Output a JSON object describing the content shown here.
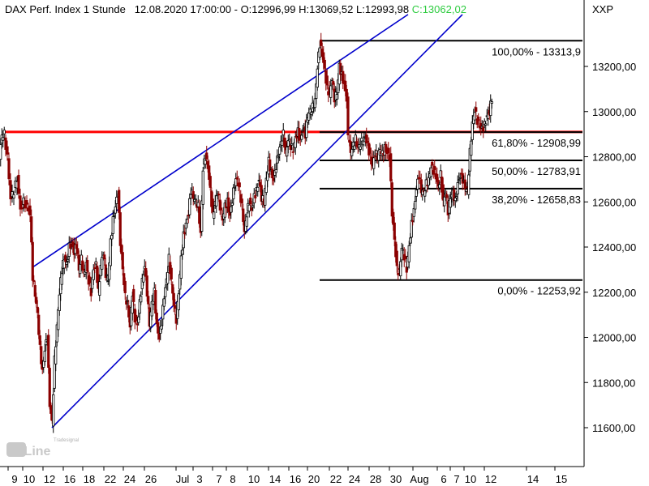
{
  "header": {
    "title": "DAX Perf. Index 1 Stunde",
    "datetime": "12.08.2020 17:00:00",
    "open": "O:12996,99",
    "high": "H:13069,52",
    "low": "L:12993,98",
    "close": "C:13062,02",
    "exchange": "XXP"
  },
  "colors": {
    "trendline": "#0000cc",
    "resistance": "#ff0000",
    "fib": "#000000",
    "up_candle": "#000000",
    "down_candle": "#8b0000",
    "close_text": "#2ecc40",
    "axis": "#000000"
  },
  "logo": {
    "brand": "Tradesignal",
    "text": "onLine"
  },
  "chart_data": {
    "type": "candlestick",
    "x_axis_labels": [
      "9",
      "10",
      "12",
      "16",
      "18",
      "22",
      "24",
      "26",
      "Jul",
      "3",
      "7",
      "8",
      "10",
      "14",
      "16",
      "20",
      "22",
      "24",
      "28",
      "30",
      "Aug",
      "6",
      "7",
      "10",
      "12",
      "14",
      "15"
    ],
    "y_axis_labels": [
      "13200,00",
      "13000,00",
      "12800,00",
      "12600,00",
      "12400,00",
      "12200,00",
      "12000,00",
      "11800,00",
      "11600,00"
    ],
    "y_ticks": [
      13200,
      13000,
      12800,
      12600,
      12400,
      12200,
      12000,
      11800,
      11600
    ],
    "ylim": [
      11480,
      13480
    ],
    "fibonacci": [
      {
        "label": "100,00% - 13313,9",
        "value": 13313.9
      },
      {
        "label": "61,80% - 12908,99",
        "value": 12908.99
      },
      {
        "label": "50,00% - 12783,91",
        "value": 12783.91
      },
      {
        "label": "38,20% - 12658,83",
        "value": 12658.83
      },
      {
        "label": "0,00% - 12253,92",
        "value": 12253.92
      }
    ],
    "resistance_level": 12910,
    "price_path": [
      [
        0,
        12800
      ],
      [
        3,
        12890
      ],
      [
        6,
        12900
      ],
      [
        10,
        12800
      ],
      [
        14,
        12620
      ],
      [
        18,
        12650
      ],
      [
        22,
        12700
      ],
      [
        26,
        12560
      ],
      [
        30,
        12600
      ],
      [
        34,
        12580
      ],
      [
        38,
        12550
      ],
      [
        41,
        12270
      ],
      [
        44,
        12190
      ],
      [
        47,
        12100
      ],
      [
        50,
        11950
      ],
      [
        53,
        11850
      ],
      [
        56,
        11950
      ],
      [
        59,
        12000
      ],
      [
        62,
        11700
      ],
      [
        65,
        11620
      ],
      [
        68,
        11900
      ],
      [
        71,
        12050
      ],
      [
        74,
        12200
      ],
      [
        77,
        12300
      ],
      [
        80,
        12350
      ],
      [
        83,
        12320
      ],
      [
        86,
        12400
      ],
      [
        89,
        12420
      ],
      [
        92,
        12380
      ],
      [
        95,
        12410
      ],
      [
        98,
        12300
      ],
      [
        101,
        12350
      ],
      [
        104,
        12280
      ],
      [
        107,
        12330
      ],
      [
        110,
        12250
      ],
      [
        113,
        12200
      ],
      [
        116,
        12300
      ],
      [
        119,
        12320
      ],
      [
        122,
        12200
      ],
      [
        125,
        12320
      ],
      [
        128,
        12380
      ],
      [
        131,
        12280
      ],
      [
        134,
        12250
      ],
      [
        137,
        12420
      ],
      [
        140,
        12520
      ],
      [
        143,
        12580
      ],
      [
        146,
        12650
      ],
      [
        149,
        12420
      ],
      [
        152,
        12300
      ],
      [
        155,
        12180
      ],
      [
        158,
        12150
      ],
      [
        161,
        12050
      ],
      [
        164,
        12200
      ],
      [
        167,
        12080
      ],
      [
        170,
        12050
      ],
      [
        173,
        12150
      ],
      [
        176,
        12250
      ],
      [
        179,
        12320
      ],
      [
        182,
        12200
      ],
      [
        185,
        12060
      ],
      [
        188,
        12150
      ],
      [
        191,
        12200
      ],
      [
        194,
        12050
      ],
      [
        197,
        12000
      ],
      [
        200,
        12070
      ],
      [
        203,
        12180
      ],
      [
        206,
        12250
      ],
      [
        209,
        12350
      ],
      [
        212,
        12250
      ],
      [
        215,
        12150
      ],
      [
        218,
        12080
      ],
      [
        221,
        12200
      ],
      [
        224,
        12350
      ],
      [
        227,
        12450
      ],
      [
        230,
        12500
      ],
      [
        233,
        12550
      ],
      [
        236,
        12650
      ],
      [
        239,
        12620
      ],
      [
        242,
        12600
      ],
      [
        245,
        12580
      ],
      [
        248,
        12460
      ],
      [
        251,
        12750
      ],
      [
        254,
        12800
      ],
      [
        257,
        12750
      ],
      [
        260,
        12650
      ],
      [
        263,
        12540
      ],
      [
        266,
        12600
      ],
      [
        269,
        12650
      ],
      [
        272,
        12580
      ],
      [
        275,
        12520
      ],
      [
        278,
        12580
      ],
      [
        281,
        12600
      ],
      [
        284,
        12540
      ],
      [
        287,
        12610
      ],
      [
        290,
        12680
      ],
      [
        293,
        12700
      ],
      [
        296,
        12650
      ],
      [
        299,
        12580
      ],
      [
        302,
        12470
      ],
      [
        305,
        12550
      ],
      [
        308,
        12600
      ],
      [
        311,
        12560
      ],
      [
        314,
        12620
      ],
      [
        317,
        12650
      ],
      [
        320,
        12700
      ],
      [
        323,
        12620
      ],
      [
        326,
        12600
      ],
      [
        329,
        12700
      ],
      [
        332,
        12780
      ],
      [
        335,
        12730
      ],
      [
        338,
        12700
      ],
      [
        341,
        12760
      ],
      [
        344,
        12810
      ],
      [
        347,
        12860
      ],
      [
        350,
        12900
      ],
      [
        353,
        12820
      ],
      [
        356,
        12880
      ],
      [
        359,
        12850
      ],
      [
        362,
        12830
      ],
      [
        365,
        12880
      ],
      [
        368,
        12910
      ],
      [
        371,
        12870
      ],
      [
        374,
        12930
      ],
      [
        377,
        12900
      ],
      [
        380,
        12980
      ],
      [
        383,
        13000
      ],
      [
        386,
        13020
      ],
      [
        389,
        13050
      ],
      [
        392,
        13200
      ],
      [
        395,
        13300
      ],
      [
        398,
        13250
      ],
      [
        401,
        13180
      ],
      [
        404,
        13100
      ],
      [
        407,
        13080
      ],
      [
        410,
        13150
      ],
      [
        413,
        13060
      ],
      [
        416,
        13080
      ],
      [
        419,
        13200
      ],
      [
        422,
        13160
      ],
      [
        425,
        13120
      ],
      [
        428,
        13060
      ],
      [
        430,
        12880
      ],
      [
        433,
        12820
      ],
      [
        436,
        12850
      ],
      [
        439,
        12880
      ],
      [
        442,
        12840
      ],
      [
        445,
        12860
      ],
      [
        448,
        12870
      ],
      [
        451,
        12880
      ],
      [
        454,
        12850
      ],
      [
        457,
        12800
      ],
      [
        460,
        12760
      ],
      [
        463,
        12820
      ],
      [
        466,
        12800
      ],
      [
        469,
        12830
      ],
      [
        472,
        12810
      ],
      [
        475,
        12840
      ],
      [
        478,
        12820
      ],
      [
        481,
        12800
      ],
      [
        484,
        12550
      ],
      [
        487,
        12430
      ],
      [
        490,
        12300
      ],
      [
        493,
        12290
      ],
      [
        496,
        12400
      ],
      [
        499,
        12360
      ],
      [
        502,
        12300
      ],
      [
        505,
        12400
      ],
      [
        508,
        12500
      ],
      [
        511,
        12560
      ],
      [
        514,
        12660
      ],
      [
        517,
        12720
      ],
      [
        520,
        12650
      ],
      [
        523,
        12640
      ],
      [
        526,
        12680
      ],
      [
        529,
        12700
      ],
      [
        532,
        12760
      ],
      [
        535,
        12740
      ],
      [
        538,
        12710
      ],
      [
        541,
        12660
      ],
      [
        544,
        12720
      ],
      [
        547,
        12600
      ],
      [
        550,
        12650
      ],
      [
        553,
        12560
      ],
      [
        556,
        12620
      ],
      [
        559,
        12640
      ],
      [
        562,
        12600
      ],
      [
        565,
        12680
      ],
      [
        568,
        12720
      ],
      [
        571,
        12700
      ],
      [
        574,
        12660
      ],
      [
        577,
        12650
      ],
      [
        580,
        12820
      ],
      [
        583,
        12950
      ],
      [
        586,
        13010
      ],
      [
        589,
        12960
      ],
      [
        592,
        12930
      ],
      [
        595,
        12920
      ],
      [
        598,
        12940
      ],
      [
        601,
        12980
      ],
      [
        604,
        13000
      ],
      [
        607,
        13060
      ]
    ],
    "grid": false,
    "legend": "none"
  }
}
